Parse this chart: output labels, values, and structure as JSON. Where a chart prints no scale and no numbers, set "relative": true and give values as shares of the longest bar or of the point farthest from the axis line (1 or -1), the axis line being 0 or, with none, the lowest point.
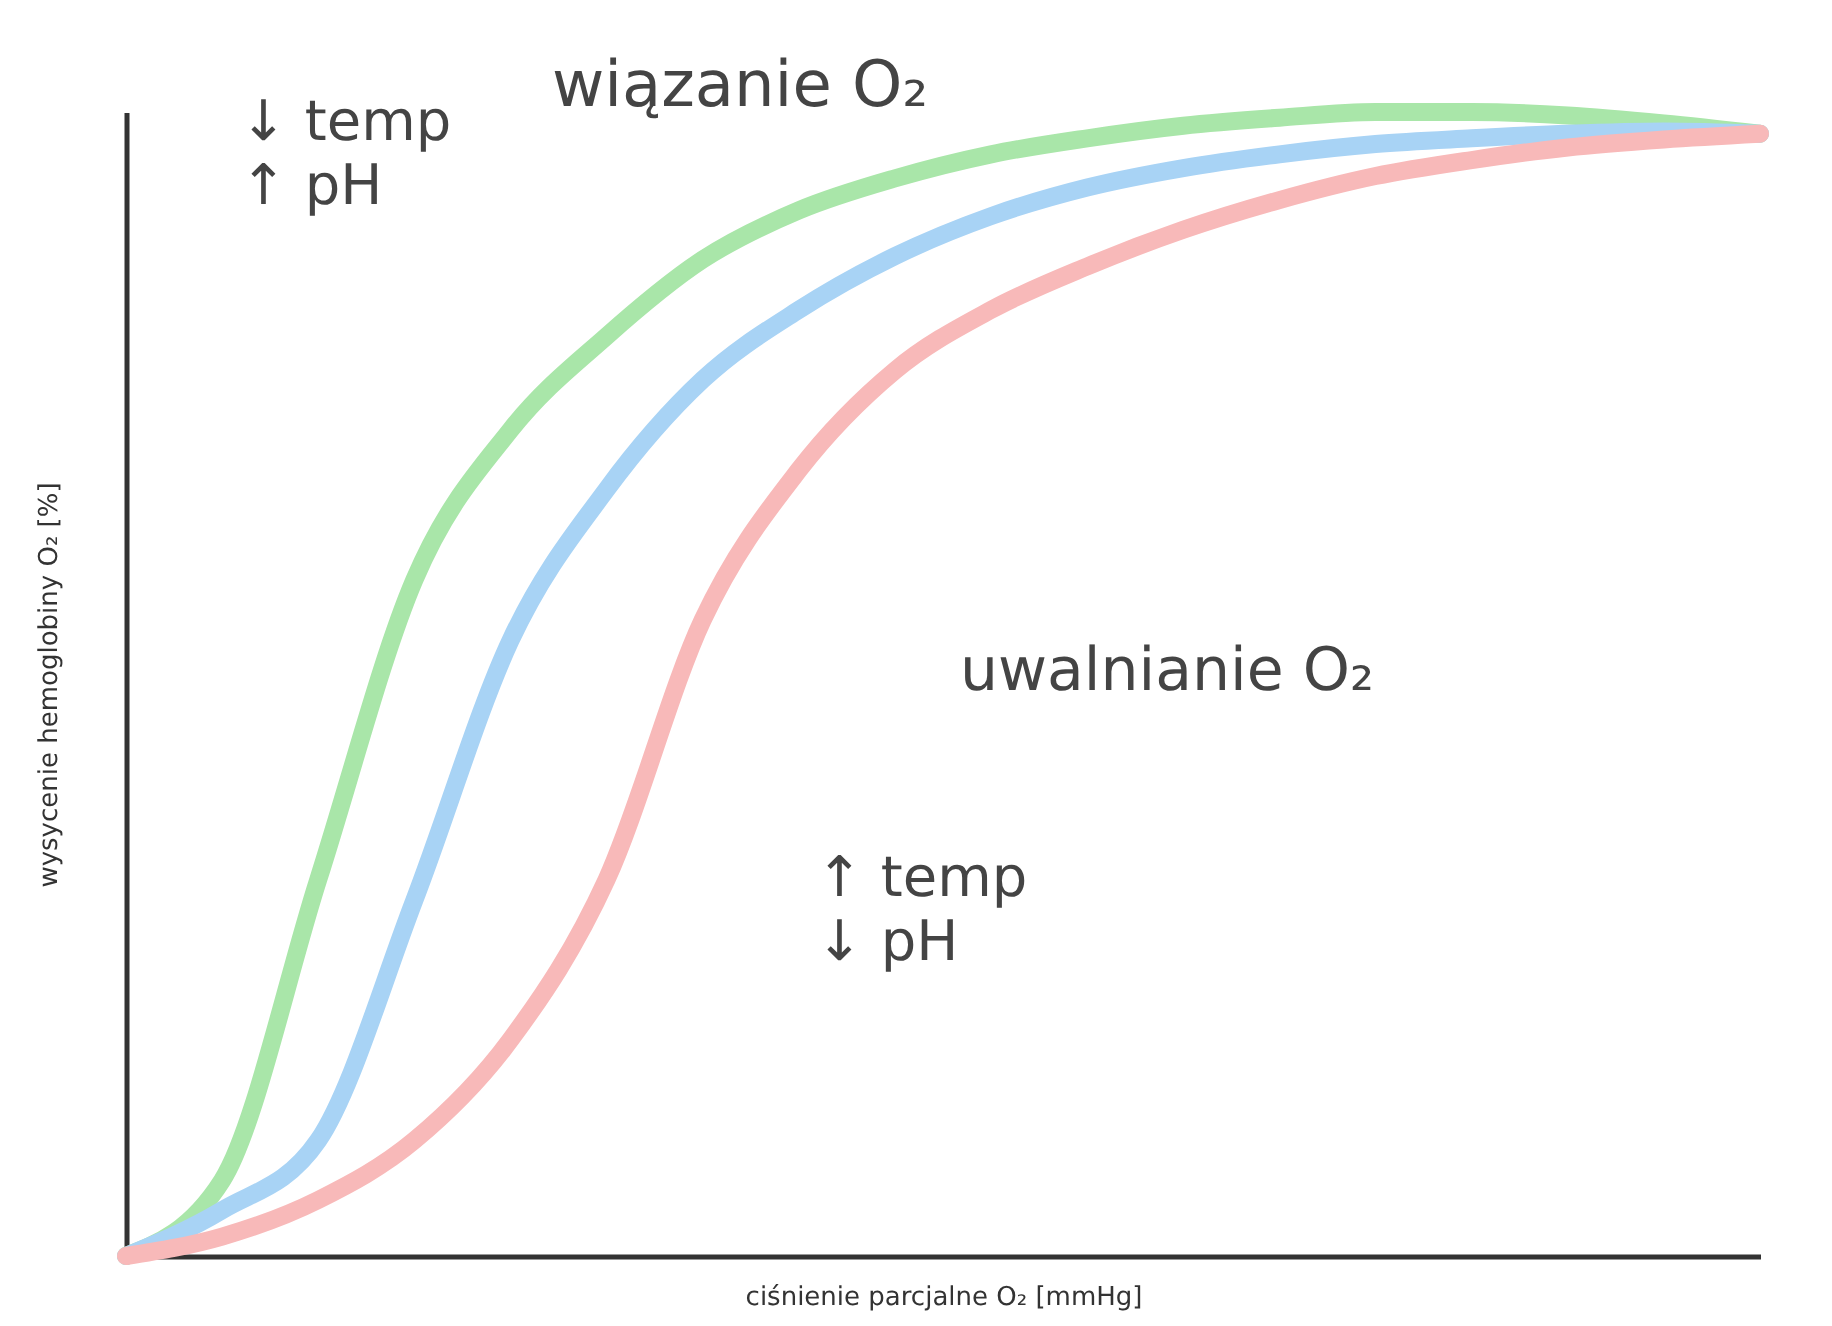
{
  "chart_data": {
    "type": "line",
    "relative": true,
    "tick_labels": false,
    "grid": false,
    "line_style": "solid",
    "xlabel": "ciśnienie parcjalne O₂ [mmHg]",
    "ylabel": "wysycenie hemoglobiny O₂ [%]",
    "annotations": [
      "wiązanie O₂",
      "↓ temp\n↑ pH",
      "uwalnianie O₂",
      "↑ temp\n↓ pH"
    ],
    "categories": [
      null,
      null,
      null,
      null,
      null,
      null,
      null,
      null,
      null,
      null,
      null,
      null,
      null,
      null,
      null,
      null,
      null,
      null
    ],
    "series": [
      {
        "color": "#a9e6a9",
        "values": [
          0,
          0.066,
          0.329,
          0.591,
          0.722,
          0.804,
          0.871,
          0.914,
          0.942,
          0.963,
          0.977,
          0.988,
          0.995,
          1.0,
          1.0,
          0.997,
          0.99,
          0.981
        ]
      },
      {
        "color": "#a8d3f5",
        "values": [
          0,
          0.04,
          0.101,
          0.311,
          0.538,
          0.67,
          0.766,
          0.827,
          0.874,
          0.909,
          0.934,
          0.951,
          0.963,
          0.972,
          0.977,
          0.981,
          0.983,
          0.981
        ]
      },
      {
        "color": "#f8b9b9",
        "values": [
          0,
          0.017,
          0.049,
          0.101,
          0.189,
          0.329,
          0.556,
          0.687,
          0.774,
          0.827,
          0.865,
          0.897,
          0.923,
          0.944,
          0.958,
          0.969,
          0.976,
          0.981
        ]
      }
    ]
  }
}
